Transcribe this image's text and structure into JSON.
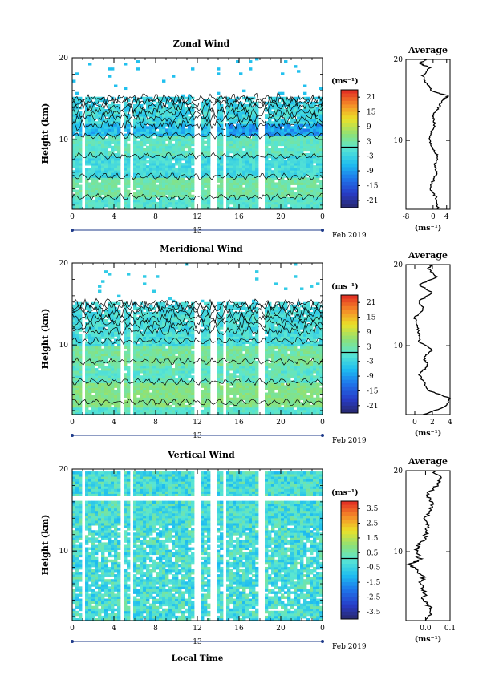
{
  "chart_data": [
    {
      "type": "heatmap",
      "title": "Zonal Wind",
      "ylabel": "Height (km)",
      "xticks": [
        "0",
        "4",
        "8",
        "12",
        "16",
        "20",
        "0"
      ],
      "yticks": [
        "20",
        "10"
      ],
      "date_label": "13",
      "month_label": "Feb 2019",
      "x_range_hours": [
        0,
        24
      ],
      "y_range_km": [
        1.5,
        20
      ],
      "colorbar": {
        "unit": "(ms⁻¹)",
        "ticks": [
          "21",
          "15",
          "9",
          "3",
          "-3",
          "-9",
          "-15",
          "-21"
        ],
        "range": [
          -24,
          24
        ]
      },
      "data_gaps_hours": [
        [
          0.8,
          1.2
        ],
        [
          4.6,
          5.0
        ],
        [
          5.4,
          5.8
        ],
        [
          11.7,
          12.2
        ],
        [
          13.3,
          13.7
        ],
        [
          14.6,
          14.9
        ],
        [
          18.0,
          18.4
        ]
      ],
      "average_profile": {
        "title": "Average",
        "xlabel": "(ms⁻¹)",
        "xticks": [
          "-8",
          "0",
          "4"
        ],
        "yticks": [
          "20",
          "10"
        ],
        "xlim": [
          -8,
          5
        ],
        "height_km": [
          1.5,
          3,
          4,
          5,
          6,
          7,
          8,
          9,
          10,
          11,
          12,
          13,
          14,
          15,
          15.5,
          16,
          17,
          18,
          19,
          19.5,
          20
        ],
        "value": [
          1.5,
          0.8,
          -1,
          0,
          1,
          0.5,
          1.5,
          0,
          -1,
          -0.5,
          0.5,
          0,
          1.5,
          3,
          4.5,
          0,
          -2,
          -3,
          -1,
          -4,
          -2
        ]
      }
    },
    {
      "type": "heatmap",
      "title": "Meridional Wind",
      "ylabel": "Height (km)",
      "xticks": [
        "0",
        "4",
        "8",
        "12",
        "16",
        "20",
        "0"
      ],
      "yticks": [
        "20",
        "10"
      ],
      "date_label": "13",
      "month_label": "Feb 2019",
      "x_range_hours": [
        0,
        24
      ],
      "y_range_km": [
        1.5,
        20
      ],
      "colorbar": {
        "unit": "(ms⁻¹)",
        "ticks": [
          "21",
          "15",
          "9",
          "3",
          "-3",
          "-9",
          "-15",
          "-21"
        ],
        "range": [
          -24,
          24
        ]
      },
      "data_gaps_hours": [
        [
          0.8,
          1.2
        ],
        [
          4.6,
          5.0
        ],
        [
          5.4,
          5.8
        ],
        [
          11.7,
          12.2
        ],
        [
          13.3,
          13.7
        ],
        [
          14.6,
          14.9
        ],
        [
          18.0,
          18.4
        ]
      ],
      "average_profile": {
        "title": "Average",
        "xlabel": "(ms⁻¹)",
        "xticks": [
          "0",
          "2",
          "4"
        ],
        "yticks": [
          "20",
          "10"
        ],
        "xlim": [
          -1,
          4
        ],
        "height_km": [
          1.5,
          2.5,
          3.5,
          4.5,
          5.5,
          6.5,
          7.5,
          8.5,
          9.5,
          10.5,
          11.5,
          12.5,
          13.5,
          14.5,
          15.5,
          16.5,
          17.5,
          18.5,
          19.5,
          20
        ],
        "value": [
          1,
          3.5,
          4,
          1.5,
          1,
          0.5,
          1.5,
          1,
          2,
          0.5,
          0.5,
          0.2,
          0,
          1,
          0.5,
          2,
          0.5,
          2.5,
          1.5,
          2
        ]
      }
    },
    {
      "type": "heatmap",
      "title": "Vertical Wind",
      "ylabel": "Height (km)",
      "xlabel": "Local Time",
      "xticks": [
        "0",
        "4",
        "8",
        "12",
        "16",
        "20",
        "0"
      ],
      "yticks": [
        "20",
        "10"
      ],
      "date_label": "13",
      "month_label": "Feb 2019",
      "x_range_hours": [
        0,
        24
      ],
      "y_range_km": [
        1.5,
        20
      ],
      "colorbar": {
        "unit": "(ms⁻¹)",
        "ticks": [
          "3.5",
          "2.5",
          "1.5",
          "0.5",
          "-0.5",
          "-1.5",
          "-2.5",
          "-3.5"
        ],
        "range": [
          -4,
          4
        ]
      },
      "data_gaps_hours": [
        [
          0.8,
          1.2
        ],
        [
          4.6,
          5.0
        ],
        [
          5.4,
          5.8
        ],
        [
          11.7,
          12.2
        ],
        [
          13.3,
          13.7
        ],
        [
          14.6,
          14.9
        ],
        [
          18.0,
          18.4
        ]
      ],
      "average_profile": {
        "title": "Average",
        "xlabel": "(ms⁻¹)",
        "xticks": [
          "0.0",
          "0.1"
        ],
        "yticks": [
          "20",
          "10"
        ],
        "xlim": [
          -0.08,
          0.1
        ],
        "height_km": [
          1.5,
          3,
          4,
          5,
          6,
          7,
          8,
          8.5,
          9,
          10,
          11,
          12,
          13,
          14,
          15,
          16,
          17,
          18,
          19,
          20
        ],
        "value": [
          0.01,
          0.02,
          -0.01,
          0.0,
          -0.02,
          -0.01,
          -0.05,
          -0.07,
          -0.02,
          -0.04,
          -0.02,
          0.0,
          0.01,
          0.0,
          0.02,
          0.03,
          0.0,
          0.04,
          0.06,
          0.03
        ]
      }
    }
  ]
}
